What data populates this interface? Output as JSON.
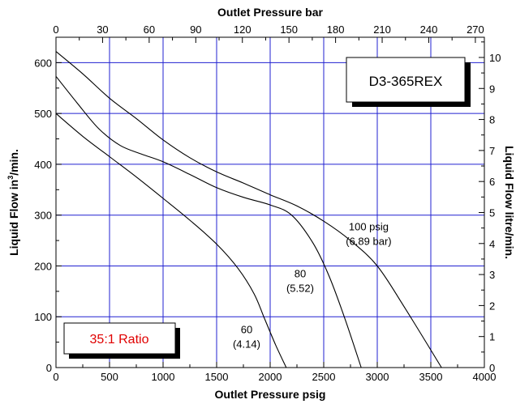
{
  "chart_data": {
    "type": "line",
    "title": "",
    "xlabel": "Outlet Pressure psig",
    "ylabel_left": "Liquid Flow in³/min.",
    "ylabel_left_main": "Liquid Flow in",
    "ylabel_left_sup": "3",
    "ylabel_left_tail": "/min.",
    "xlabel_top": "Outlet Pressure bar",
    "ylabel_right": "Liquid Flow litre/min.",
    "xlim": [
      0,
      4000
    ],
    "ylim": [
      0,
      650
    ],
    "xticks": [
      0,
      500,
      1000,
      1500,
      2000,
      2500,
      3000,
      3500,
      4000
    ],
    "xticks_minor": [
      250,
      750,
      1250,
      1750,
      2250,
      2750,
      3250,
      3750
    ],
    "yticks": [
      0,
      100,
      200,
      300,
      400,
      500,
      600
    ],
    "yticks_minor": [
      50,
      150,
      250,
      350,
      450,
      550
    ],
    "top_axis": {
      "unit": "bar",
      "psig_per_unit": 14.5038,
      "ticks": [
        0,
        30,
        60,
        90,
        120,
        150,
        180,
        210,
        240,
        270
      ]
    },
    "right_axis": {
      "unit": "litre/min",
      "in3_per_unit": 61.0237,
      "ticks": [
        0,
        1,
        2,
        3,
        4,
        5,
        6,
        7,
        8,
        9,
        10
      ]
    },
    "grid": true,
    "grid_color": "#2020d0",
    "line_color": "#000000",
    "series": [
      {
        "name": "60 psig",
        "label_line1": "60",
        "label_line2": "(4.14)",
        "label_at": [
          1780,
          68
        ],
        "points": [
          [
            0,
            500
          ],
          [
            250,
            455
          ],
          [
            500,
            415
          ],
          [
            750,
            375
          ],
          [
            1000,
            333
          ],
          [
            1250,
            290
          ],
          [
            1500,
            243
          ],
          [
            1700,
            195
          ],
          [
            1850,
            145
          ],
          [
            1950,
            95
          ],
          [
            2050,
            45
          ],
          [
            2150,
            0
          ]
        ]
      },
      {
        "name": "80 psig",
        "label_line1": "80",
        "label_line2": "(5.52)",
        "label_at": [
          2280,
          178
        ],
        "points": [
          [
            0,
            573
          ],
          [
            200,
            520
          ],
          [
            400,
            470
          ],
          [
            600,
            437
          ],
          [
            800,
            420
          ],
          [
            1000,
            405
          ],
          [
            1250,
            380
          ],
          [
            1500,
            354
          ],
          [
            1750,
            335
          ],
          [
            2000,
            320
          ],
          [
            2200,
            300
          ],
          [
            2400,
            245
          ],
          [
            2550,
            180
          ],
          [
            2700,
            95
          ],
          [
            2850,
            0
          ]
        ]
      },
      {
        "name": "100 psig",
        "label_line1": "100 psig",
        "label_line2": "(6.89 bar)",
        "label_at": [
          2920,
          270
        ],
        "points": [
          [
            0,
            622
          ],
          [
            250,
            578
          ],
          [
            500,
            530
          ],
          [
            750,
            490
          ],
          [
            1000,
            448
          ],
          [
            1250,
            413
          ],
          [
            1500,
            385
          ],
          [
            1750,
            363
          ],
          [
            2000,
            340
          ],
          [
            2250,
            318
          ],
          [
            2500,
            288
          ],
          [
            2750,
            250
          ],
          [
            3000,
            200
          ],
          [
            3250,
            120
          ],
          [
            3600,
            0
          ]
        ]
      }
    ]
  },
  "model_box": {
    "text": "D3-365REX"
  },
  "ratio_box": {
    "text": "35:1 Ratio",
    "color": "#e00000"
  }
}
